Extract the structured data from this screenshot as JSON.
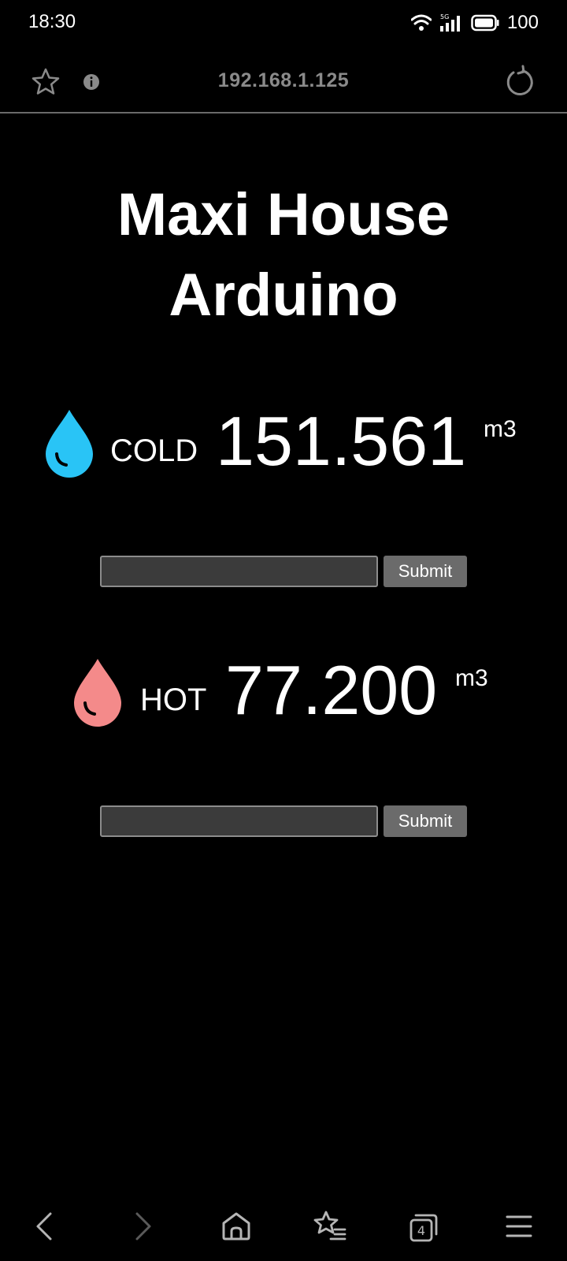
{
  "status_bar": {
    "time": "18:30",
    "network_label": "5G",
    "battery": "100",
    "icons": [
      "wifi-icon",
      "cellular-signal-icon",
      "battery-icon"
    ]
  },
  "browser": {
    "url": "192.168.1.125",
    "tab_count": "4",
    "icons": [
      "star-icon",
      "info-icon",
      "reload-icon"
    ]
  },
  "page": {
    "title_line1": "Maxi House",
    "title_line2": "Arduino"
  },
  "meters": {
    "cold": {
      "label": "COLD",
      "value": "151.561",
      "unit": "m3",
      "color": "#29c4f6"
    },
    "hot": {
      "label": "HOT",
      "value": "77.200",
      "unit": "m3",
      "color": "#f48a8a"
    }
  },
  "forms": {
    "cold": {
      "input_value": "",
      "submit_label": "Submit"
    },
    "hot": {
      "input_value": "",
      "submit_label": "Submit"
    }
  },
  "bottom_nav": {
    "icons": [
      "back-icon",
      "forward-icon",
      "home-icon",
      "bookmarks-icon",
      "tabs-icon",
      "menu-icon"
    ]
  }
}
